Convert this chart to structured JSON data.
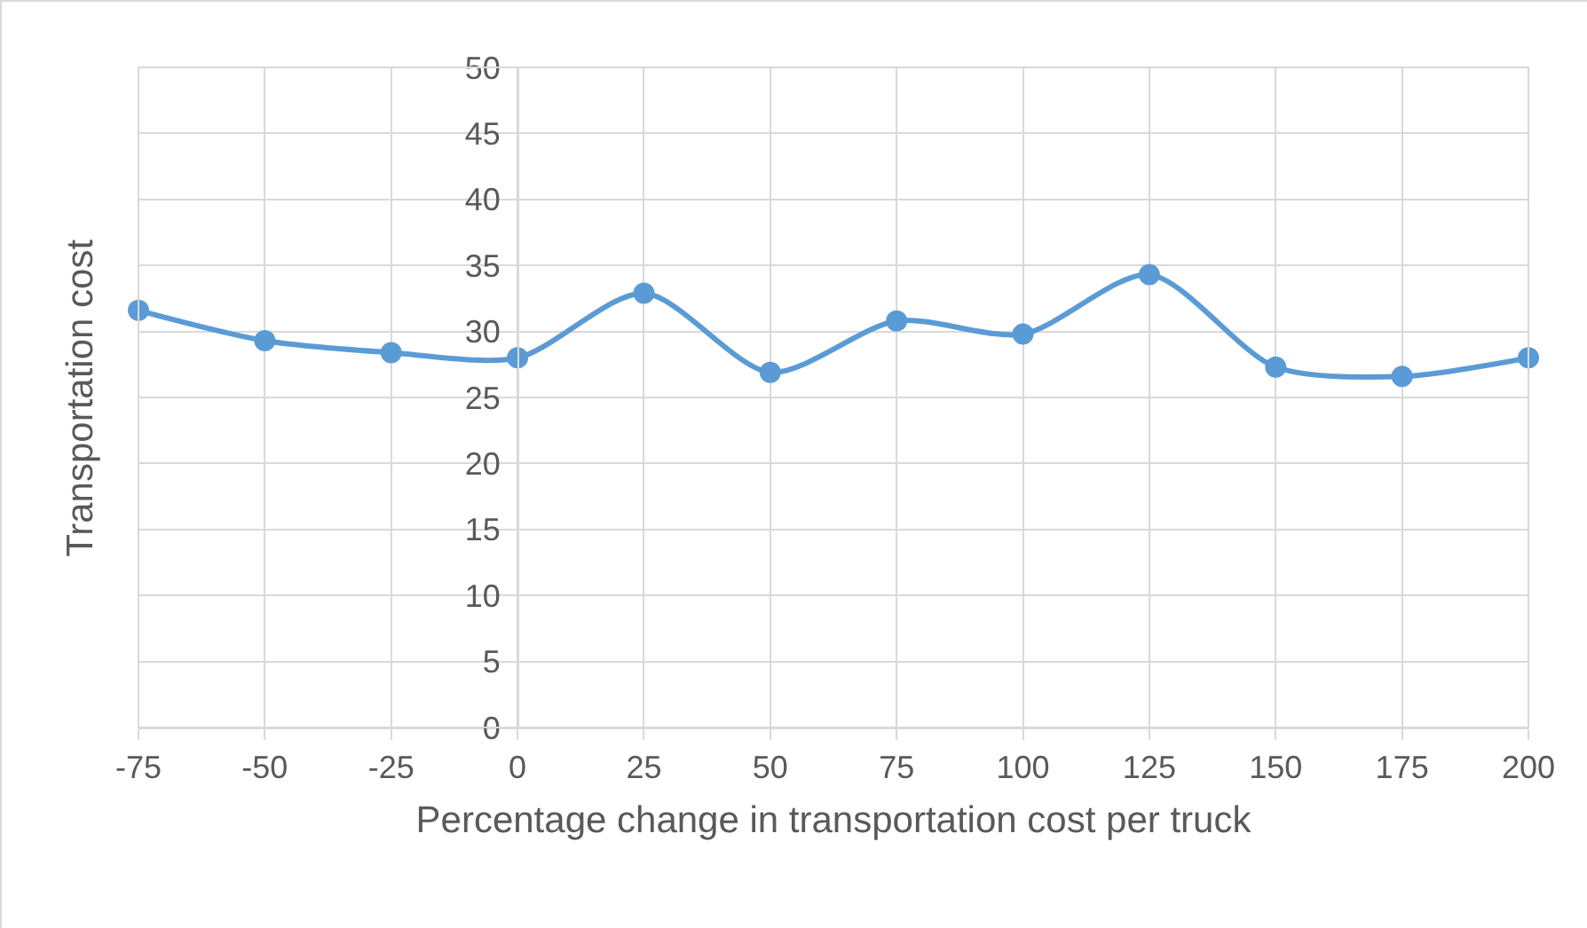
{
  "chart_data": {
    "type": "line",
    "xlabel": "Percentage change in transportation cost per truck",
    "ylabel": "Transportation cost",
    "x": [
      -75,
      -50,
      -25,
      0,
      25,
      50,
      75,
      100,
      125,
      150,
      175,
      200
    ],
    "series": [
      {
        "color": "#5b9bd5",
        "values": [
          31.6,
          29.3,
          28.4,
          28.0,
          32.9,
          26.9,
          30.8,
          29.8,
          34.3,
          27.3,
          26.6,
          28.0
        ]
      }
    ],
    "xlim": [
      -75,
      200
    ],
    "xticks": [
      -75,
      -50,
      -25,
      0,
      25,
      50,
      75,
      100,
      125,
      150,
      175,
      200
    ],
    "ylim": [
      0,
      50
    ],
    "yticks": [
      0,
      5,
      10,
      15,
      20,
      25,
      30,
      35,
      40,
      45,
      50
    ],
    "grid": true,
    "marker": "circle",
    "line_style": "solid"
  }
}
